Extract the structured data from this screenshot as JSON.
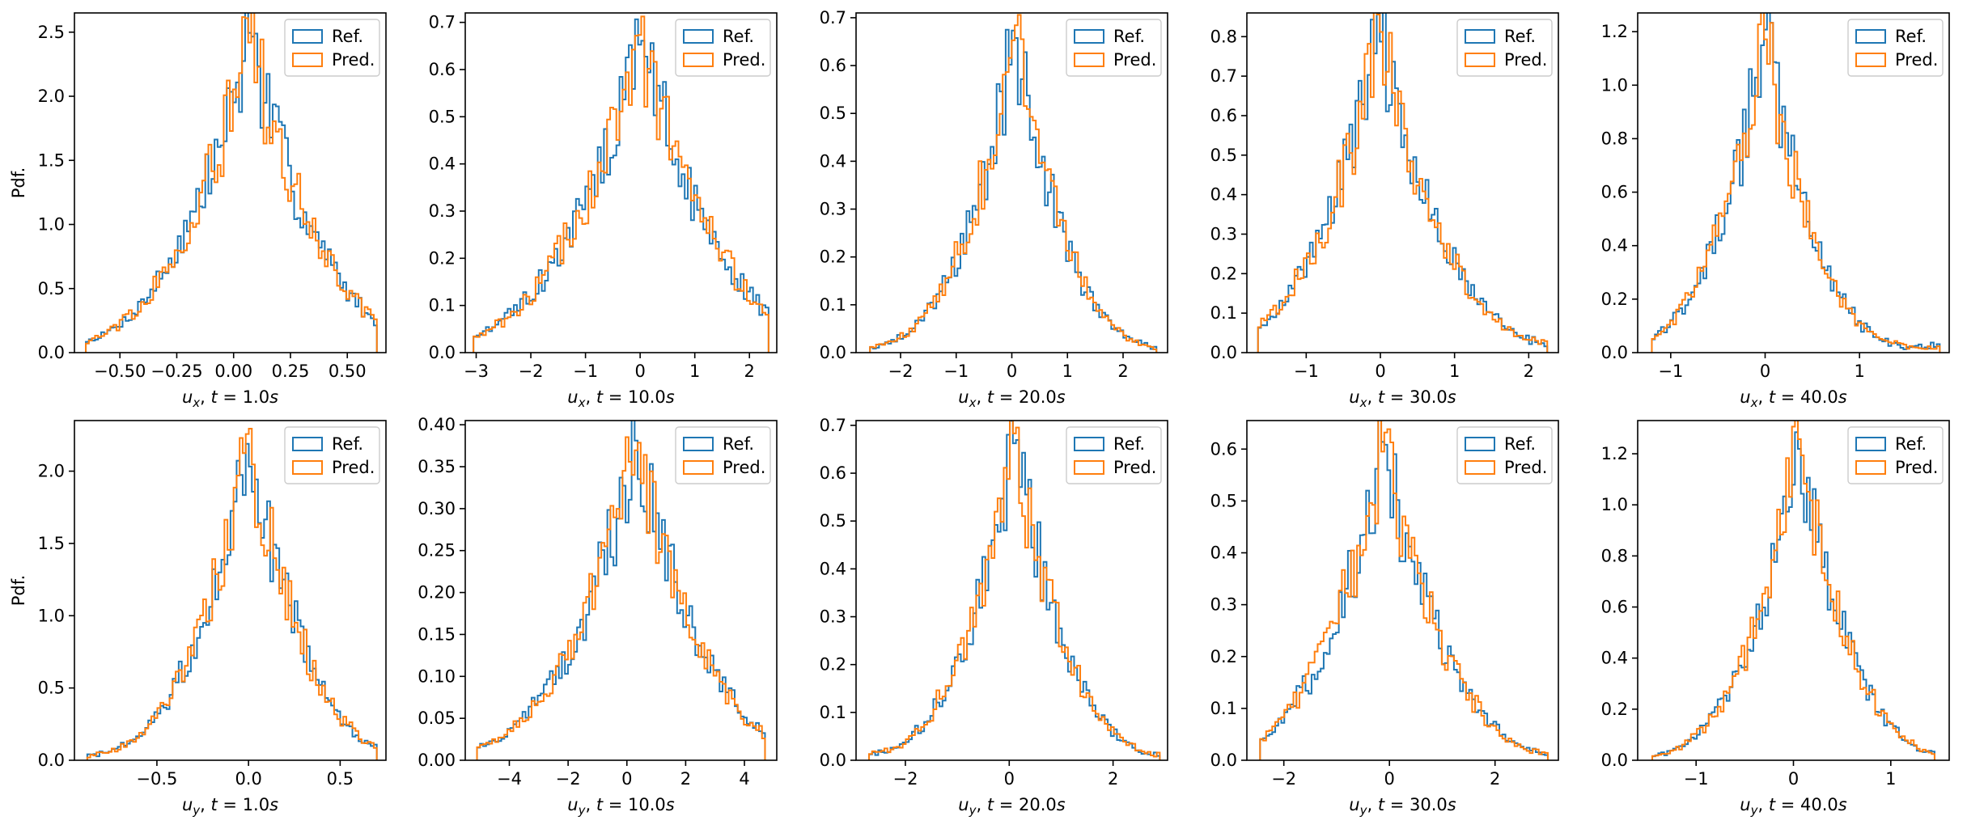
{
  "legend": {
    "ref_label": "Ref.",
    "pred_label": "Pred."
  },
  "colors": {
    "ref": "#1f77b4",
    "pred": "#ff7f0e"
  },
  "chart_data": [
    {
      "type": "histogram",
      "component": "ux",
      "xlabel": "u_x, t = 1.0s",
      "xlabel_sub": "x",
      "xlabel_t": "1.0",
      "ylabel": "Pdf.",
      "xlim": [
        -0.7,
        0.67
      ],
      "ylim": [
        0,
        2.65
      ],
      "xticks": [
        -0.5,
        -0.25,
        0,
        0.25,
        0.5
      ],
      "xtick_labels": [
        "−0.50",
        "−0.25",
        "0.00",
        "0.25",
        "0.50"
      ],
      "yticks": [
        0,
        0.5,
        1,
        1.5,
        2,
        2.5
      ],
      "ytick_labels": [
        "0.0",
        "0.5",
        "1.0",
        "1.5",
        "2.0",
        "2.5"
      ],
      "range": [
        -0.65,
        0.63
      ],
      "peak": 2.52,
      "peak_at": 0.07,
      "spread": 0.2,
      "tail": 0.03
    },
    {
      "type": "histogram",
      "component": "ux",
      "xlabel": "u_x, t = 10.0s",
      "xlabel_sub": "x",
      "xlabel_t": "10.0",
      "ylabel": "",
      "xlim": [
        -3.2,
        2.5
      ],
      "ylim": [
        0,
        0.72
      ],
      "xticks": [
        -3,
        -2,
        -1,
        0,
        1,
        2
      ],
      "xtick_labels": [
        "−3",
        "−2",
        "−1",
        "0",
        "1",
        "2"
      ],
      "yticks": [
        0,
        0.1,
        0.2,
        0.3,
        0.4,
        0.5,
        0.6,
        0.7
      ],
      "ytick_labels": [
        "0.0",
        "0.1",
        "0.2",
        "0.3",
        "0.4",
        "0.5",
        "0.6",
        "0.7"
      ],
      "range": [
        -3.05,
        2.35
      ],
      "peak": 0.68,
      "peak_at": 0.0,
      "spread": 0.9,
      "tail": 0.02
    },
    {
      "type": "histogram",
      "component": "ux",
      "xlabel": "u_x, t = 20.0s",
      "xlabel_sub": "x",
      "xlabel_t": "20.0",
      "ylabel": "",
      "xlim": [
        -2.8,
        2.8
      ],
      "ylim": [
        0,
        0.71
      ],
      "xticks": [
        -2,
        -1,
        0,
        1,
        2
      ],
      "xtick_labels": [
        "−2",
        "−1",
        "0",
        "1",
        "2"
      ],
      "yticks": [
        0,
        0.1,
        0.2,
        0.3,
        0.4,
        0.5,
        0.6,
        0.7
      ],
      "ytick_labels": [
        "0.0",
        "0.1",
        "0.2",
        "0.3",
        "0.4",
        "0.5",
        "0.6",
        "0.7"
      ],
      "range": [
        -2.55,
        2.6
      ],
      "peak": 0.68,
      "peak_at": 0.05,
      "spread": 0.6,
      "tail": 0.02
    },
    {
      "type": "histogram",
      "component": "ux",
      "xlabel": "u_x, t = 30.0s",
      "xlabel_sub": "x",
      "xlabel_t": "30.0",
      "ylabel": "",
      "xlim": [
        -1.8,
        2.4
      ],
      "ylim": [
        0,
        0.86
      ],
      "xticks": [
        -1,
        0,
        1,
        2
      ],
      "xtick_labels": [
        "−1",
        "0",
        "1",
        "2"
      ],
      "yticks": [
        0,
        0.1,
        0.2,
        0.3,
        0.4,
        0.5,
        0.6,
        0.7,
        0.8
      ],
      "ytick_labels": [
        "0.0",
        "0.1",
        "0.2",
        "0.3",
        "0.4",
        "0.5",
        "0.6",
        "0.7",
        "0.8"
      ],
      "range": [
        -1.65,
        2.25
      ],
      "peak": 0.82,
      "peak_at": 0.0,
      "spread": 0.55,
      "tail": 0.04
    },
    {
      "type": "histogram",
      "component": "ux",
      "xlabel": "u_x, t = 40.0s",
      "xlabel_sub": "x",
      "xlabel_t": "40.0",
      "ylabel": "",
      "xlim": [
        -1.35,
        1.95
      ],
      "ylim": [
        0,
        1.27
      ],
      "xticks": [
        -1,
        0,
        1
      ],
      "xtick_labels": [
        "−1",
        "0",
        "1"
      ],
      "yticks": [
        0,
        0.2,
        0.4,
        0.6,
        0.8,
        1.0,
        1.2
      ],
      "ytick_labels": [
        "0.0",
        "0.2",
        "0.4",
        "0.6",
        "0.8",
        "1.0",
        "1.2"
      ],
      "range": [
        -1.2,
        1.85
      ],
      "peak": 1.22,
      "peak_at": 0.0,
      "spread": 0.35,
      "tail": 0.04
    },
    {
      "type": "histogram",
      "component": "uy",
      "xlabel": "u_y, t = 1.0s",
      "xlabel_sub": "y",
      "xlabel_t": "1.0",
      "ylabel": "Pdf.",
      "xlim": [
        -0.95,
        0.75
      ],
      "ylim": [
        0,
        2.35
      ],
      "xticks": [
        -0.5,
        0,
        0.5
      ],
      "xtick_labels": [
        "−0.5",
        "0.0",
        "0.5"
      ],
      "yticks": [
        0,
        0.5,
        1,
        1.5,
        2
      ],
      "ytick_labels": [
        "0.0",
        "0.5",
        "1.0",
        "1.5",
        "2.0"
      ],
      "range": [
        -0.88,
        0.7
      ],
      "peak": 2.28,
      "peak_at": 0.0,
      "spread": 0.2,
      "tail": 0.05
    },
    {
      "type": "histogram",
      "component": "uy",
      "xlabel": "u_y, t = 10.0s",
      "xlabel_sub": "y",
      "xlabel_t": "10.0",
      "ylabel": "",
      "xlim": [
        -5.5,
        5.1
      ],
      "ylim": [
        0,
        0.405
      ],
      "xticks": [
        -4,
        -2,
        0,
        2,
        4
      ],
      "xtick_labels": [
        "−4",
        "−2",
        "0",
        "2",
        "4"
      ],
      "yticks": [
        0,
        0.05,
        0.1,
        0.15,
        0.2,
        0.25,
        0.3,
        0.35,
        0.4
      ],
      "ytick_labels": [
        "0.00",
        "0.05",
        "0.10",
        "0.15",
        "0.20",
        "0.25",
        "0.30",
        "0.35",
        "0.40"
      ],
      "range": [
        -5.1,
        4.7
      ],
      "peak": 0.385,
      "peak_at": 0.3,
      "spread": 1.5,
      "tail": 0.01
    },
    {
      "type": "histogram",
      "component": "uy",
      "xlabel": "u_y, t = 20.0s",
      "xlabel_sub": "y",
      "xlabel_t": "20.0",
      "ylabel": "",
      "xlim": [
        -2.95,
        3.05
      ],
      "ylim": [
        0,
        0.71
      ],
      "xticks": [
        -2,
        0,
        2
      ],
      "xtick_labels": [
        "−2",
        "0",
        "2"
      ],
      "yticks": [
        0,
        0.1,
        0.2,
        0.3,
        0.4,
        0.5,
        0.6,
        0.7
      ],
      "ytick_labels": [
        "0.0",
        "0.1",
        "0.2",
        "0.3",
        "0.4",
        "0.5",
        "0.6",
        "0.7"
      ],
      "range": [
        -2.7,
        2.9
      ],
      "peak": 0.69,
      "peak_at": 0.1,
      "spread": 0.65,
      "tail": 0.02
    },
    {
      "type": "histogram",
      "component": "uy",
      "xlabel": "u_y, t = 30.0s",
      "xlabel_sub": "y",
      "xlabel_t": "30.0",
      "ylabel": "",
      "xlim": [
        -2.7,
        3.2
      ],
      "ylim": [
        0,
        0.655
      ],
      "xticks": [
        -2,
        0,
        2
      ],
      "xtick_labels": [
        "−2",
        "0",
        "2"
      ],
      "yticks": [
        0,
        0.1,
        0.2,
        0.3,
        0.4,
        0.5,
        0.6
      ],
      "ytick_labels": [
        "0.0",
        "0.1",
        "0.2",
        "0.3",
        "0.4",
        "0.5",
        "0.6"
      ],
      "range": [
        -2.45,
        3.0
      ],
      "peak": 0.62,
      "peak_at": -0.1,
      "spread": 0.75,
      "tail": 0.02
    },
    {
      "type": "histogram",
      "component": "uy",
      "xlabel": "u_y, t = 40.0s",
      "xlabel_sub": "y",
      "xlabel_t": "40.0",
      "ylabel": "",
      "xlim": [
        -1.6,
        1.6
      ],
      "ylim": [
        0,
        1.33
      ],
      "xticks": [
        -1,
        0,
        1
      ],
      "xtick_labels": [
        "−1",
        "0",
        "1"
      ],
      "yticks": [
        0,
        0.2,
        0.4,
        0.6,
        0.8,
        1.0,
        1.2
      ],
      "ytick_labels": [
        "0.0",
        "0.2",
        "0.4",
        "0.6",
        "0.8",
        "1.0",
        "1.2"
      ],
      "range": [
        -1.45,
        1.45
      ],
      "peak": 1.27,
      "peak_at": 0.05,
      "spread": 0.35,
      "tail": 0.03
    }
  ]
}
